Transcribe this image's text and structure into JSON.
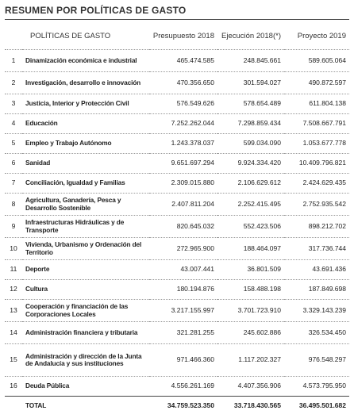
{
  "title": "RESUMEN POR POLÍTICAS DE GASTO",
  "table": {
    "header": [
      "POLÍTICAS DE GASTO",
      "Presupuesto 2018",
      "Ejecución 2018(*)",
      "Proyecto 2019"
    ],
    "rows": [
      [
        "1",
        "Dinamización económica e industrial",
        "465.474.585",
        "248.845.661",
        "589.605.064"
      ],
      [
        "2",
        "Investigación, desarrollo e innovación",
        "470.356.650",
        "301.594.027",
        "490.872.597"
      ],
      [
        "3",
        "Justicia, Interior y Protección Civil",
        "576.549.626",
        "578.654.489",
        "611.804.138"
      ],
      [
        "4",
        "Educación",
        "7.252.262.044",
        "7.298.859.434",
        "7.508.667.791"
      ],
      [
        "5",
        "Empleo y Trabajo Autónomo",
        "1.243.378.037",
        "599.034.090",
        "1.053.677.778"
      ],
      [
        "6",
        "Sanidad",
        "9.651.697.294",
        "9.924.334.420",
        "10.409.796.821"
      ],
      [
        "7",
        "Conciliación, Igualdad y Familias",
        "2.309.015.880",
        "2.106.629.612",
        "2.424.629.435"
      ],
      [
        "8",
        "Agricultura, Ganadería, Pesca y Desarrollo Sostenible",
        "2.407.811.204",
        "2.252.415.495",
        "2.752.935.542"
      ],
      [
        "9",
        "Infraestructuras Hidráulicas y de Transporte",
        "820.645.032",
        "552.423.506",
        "898.212.702"
      ],
      [
        "10",
        "Vivienda, Urbanismo y Ordenación del Territorio",
        "272.965.900",
        "188.464.097",
        "317.736.744"
      ],
      [
        "11",
        "Deporte",
        "43.007.441",
        "36.801.509",
        "43.691.436"
      ],
      [
        "12",
        "Cultura",
        "180.194.876",
        "158.488.198",
        "187.849.698"
      ],
      [
        "13",
        "Cooperación y financiación de las Corporaciones Locales",
        "3.217.155.997",
        "3.701.723.910",
        "3.329.143.239"
      ],
      [
        "14",
        "Administración financiera y tributaria",
        "321.281.255",
        "245.602.886",
        "326.534.450"
      ],
      [
        "15",
        "Administración y dirección de la Junta de Andalucía y sus instituciones",
        "971.466.360",
        "1.117.202.327",
        "976.548.297"
      ],
      [
        "16",
        "Deuda Pública",
        "4.556.261.169",
        "4.407.356.906",
        "4.573.795.950"
      ]
    ],
    "total": [
      "TOTAL",
      "34.759.523.350",
      "33.718.430.565",
      "36.495.501.682"
    ]
  }
}
